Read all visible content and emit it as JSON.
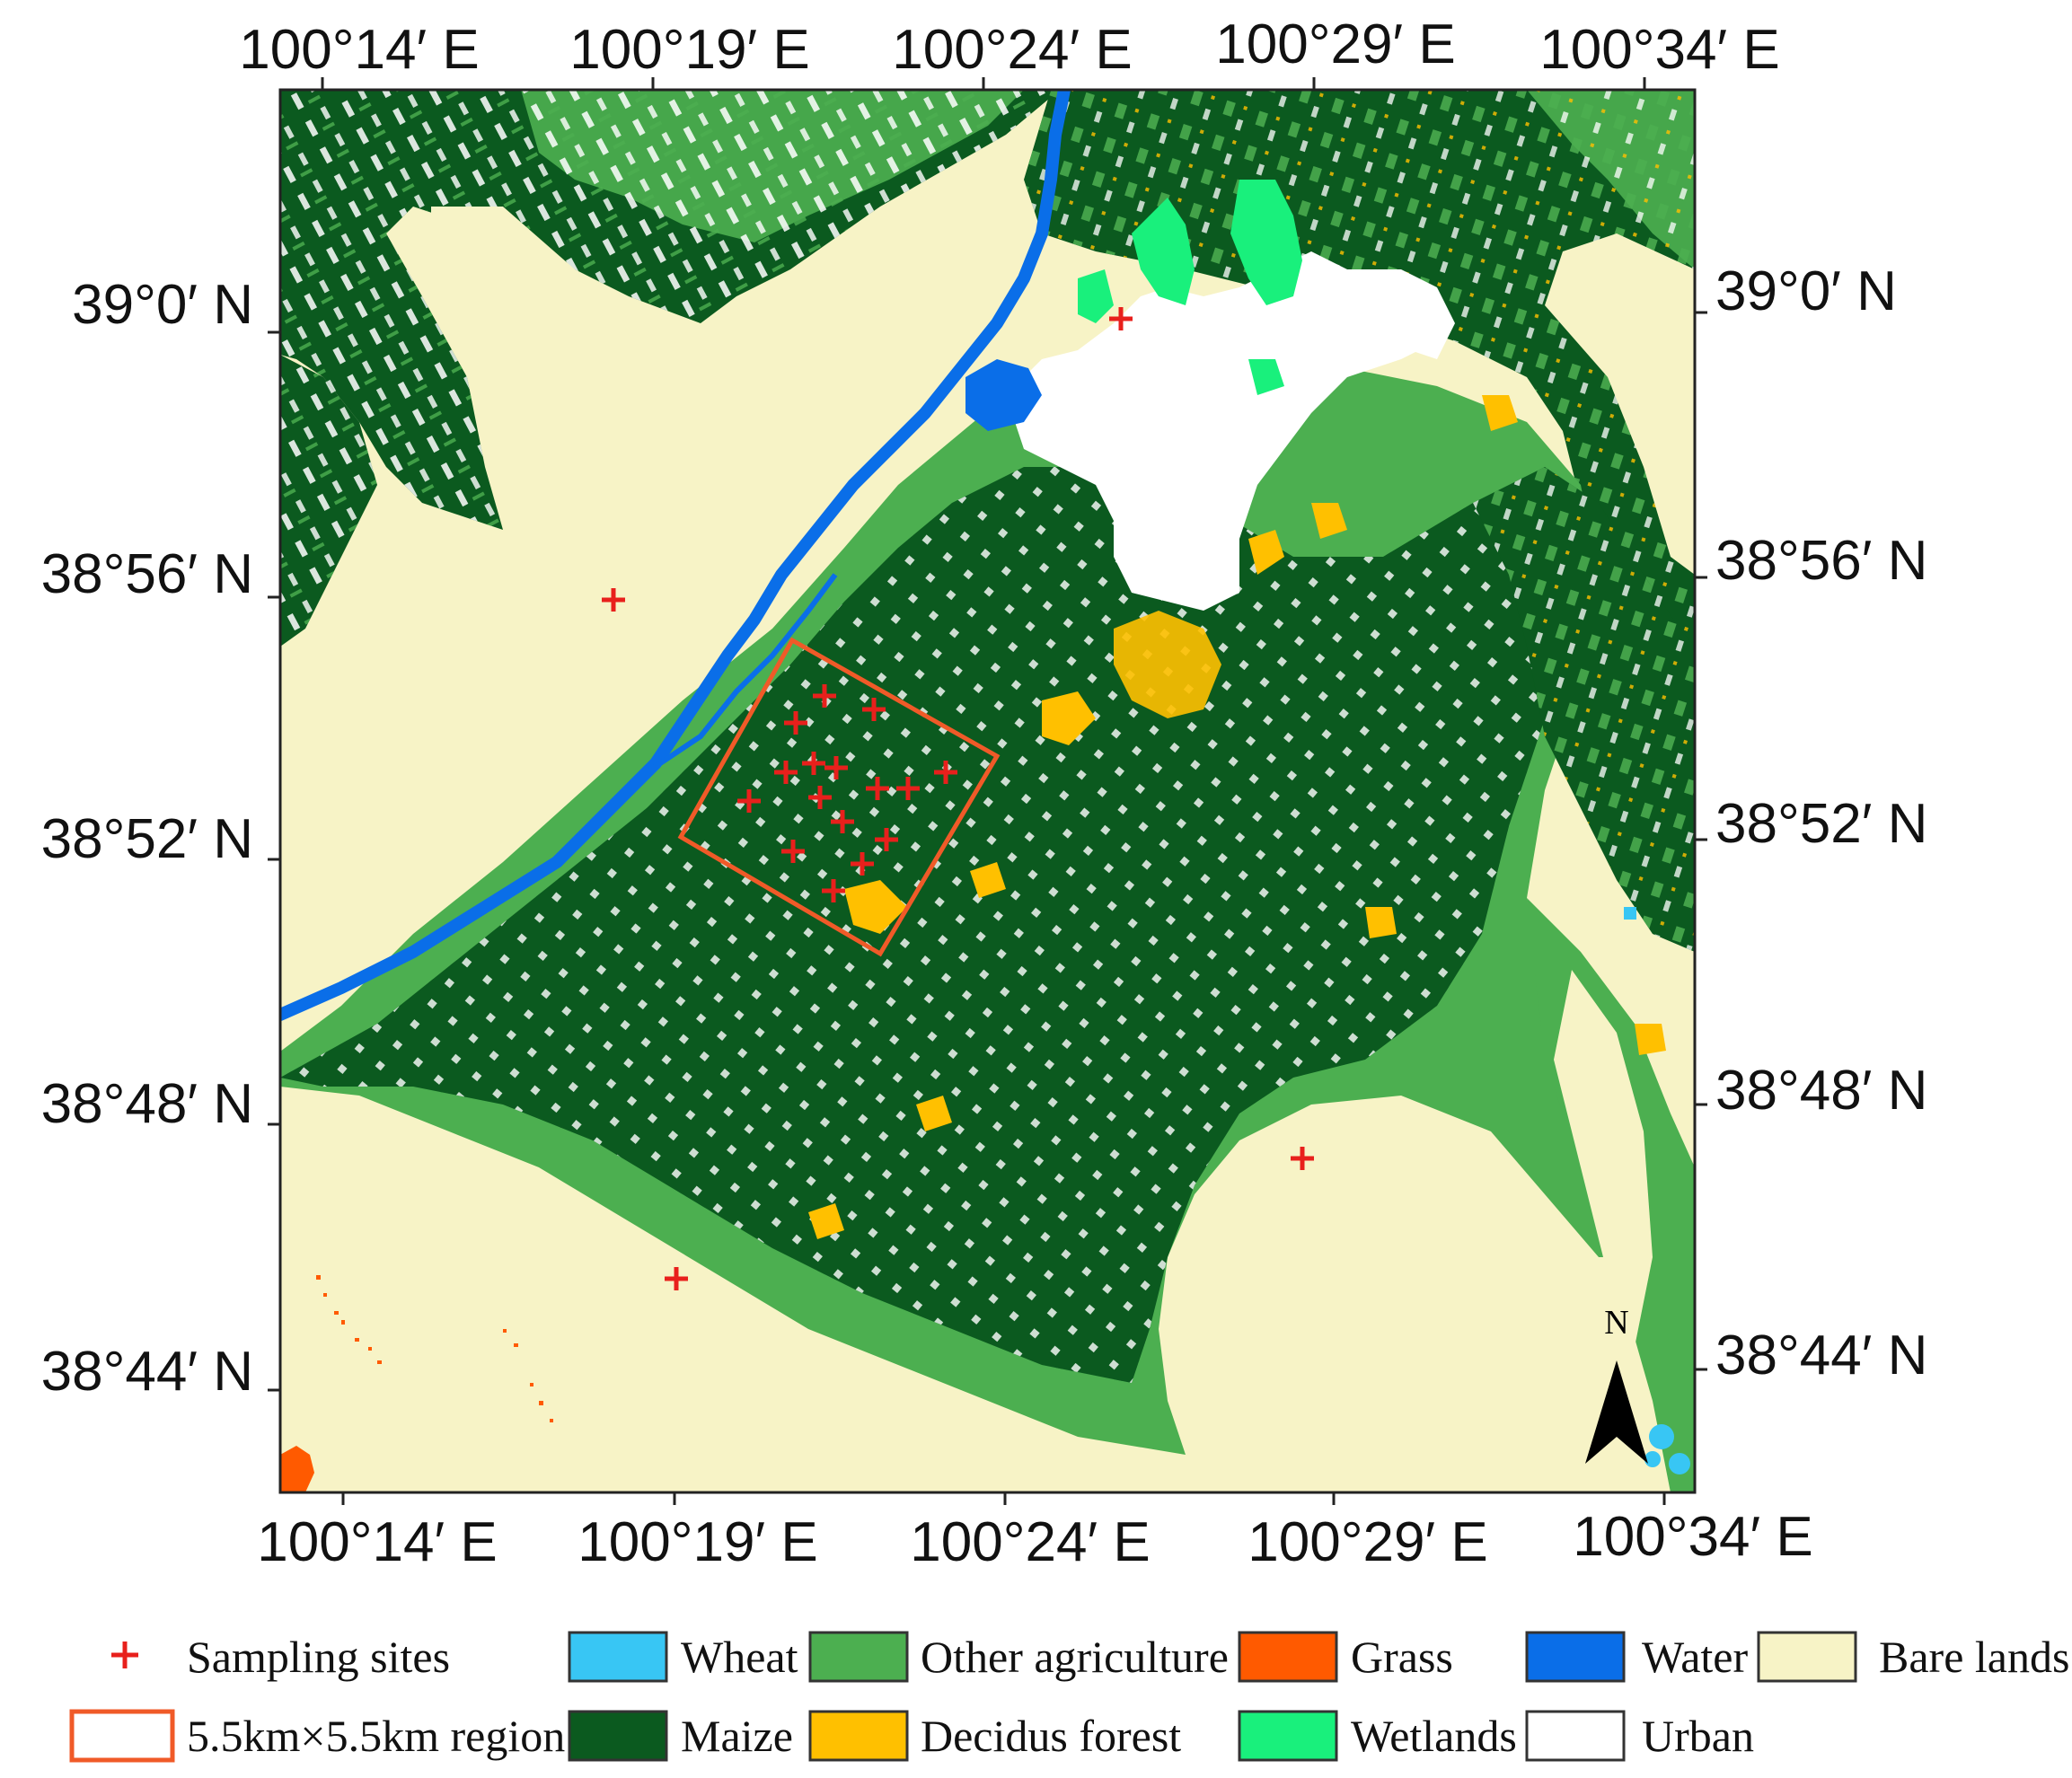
{
  "map": {
    "top_ticks": [
      "100°14′ E",
      "100°19′ E",
      "100°24′ E",
      "100°29′ E",
      "100°34′ E"
    ],
    "bottom_ticks": [
      "100°14′ E",
      "100°19′ E",
      "100°24′ E",
      "100°29′ E",
      "100°34′ E"
    ],
    "left_ticks": [
      "39°0′ N",
      "38°56′ N",
      "38°52′ N",
      "38°48′ N",
      "38°44′ N"
    ],
    "right_ticks": [
      "39°0′ N",
      "38°56′ N",
      "38°52′ N",
      "38°48′ N",
      "38°44′ N"
    ],
    "north_label": "N"
  },
  "colors": {
    "wheat": "#38c6f4",
    "other_agriculture": "#4caf50",
    "grass": "#ff5a00",
    "water": "#0a6ee8",
    "bare_lands": "#f7f3c6",
    "maize": "#0b5a1f",
    "decidus_forest": "#ffc000",
    "wetlands": "#19f07c",
    "urban": "#ffffff",
    "sampling_site": "#e8201c",
    "region_outline": "#f05a28"
  },
  "legend": {
    "sampling_sites": "Sampling sites",
    "region": "5.5km×5.5km region",
    "wheat": "Wheat",
    "maize": "Maize",
    "other_agriculture": "Other agriculture",
    "decidus_forest": "Decidus forest",
    "grass": "Grass",
    "wetlands": "Wetlands",
    "water": "Water",
    "urban": "Urban",
    "bare_lands": "Bare lands"
  }
}
